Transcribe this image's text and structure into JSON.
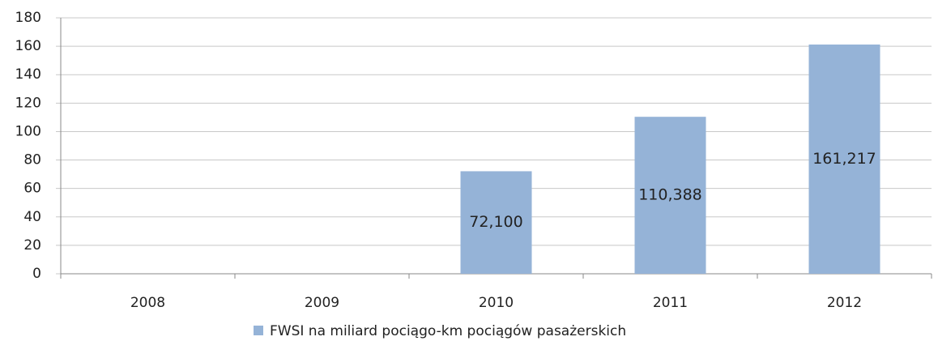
{
  "chart_data": {
    "type": "bar",
    "categories": [
      "2008",
      "2009",
      "2010",
      "2011",
      "2012"
    ],
    "series": [
      {
        "name": "FWSI na miliard pociągo-km pociągów pasażerskich",
        "color": "#95b3d7",
        "values": [
          null,
          null,
          72.1,
          110.388,
          161.217
        ],
        "value_labels": [
          null,
          null,
          "72,100",
          "110,388",
          "161,217"
        ]
      }
    ],
    "ylim": [
      0,
      180
    ],
    "yticks": [
      0,
      20,
      40,
      60,
      80,
      100,
      120,
      140,
      160,
      180
    ],
    "grid": true,
    "legend": "bottom"
  }
}
